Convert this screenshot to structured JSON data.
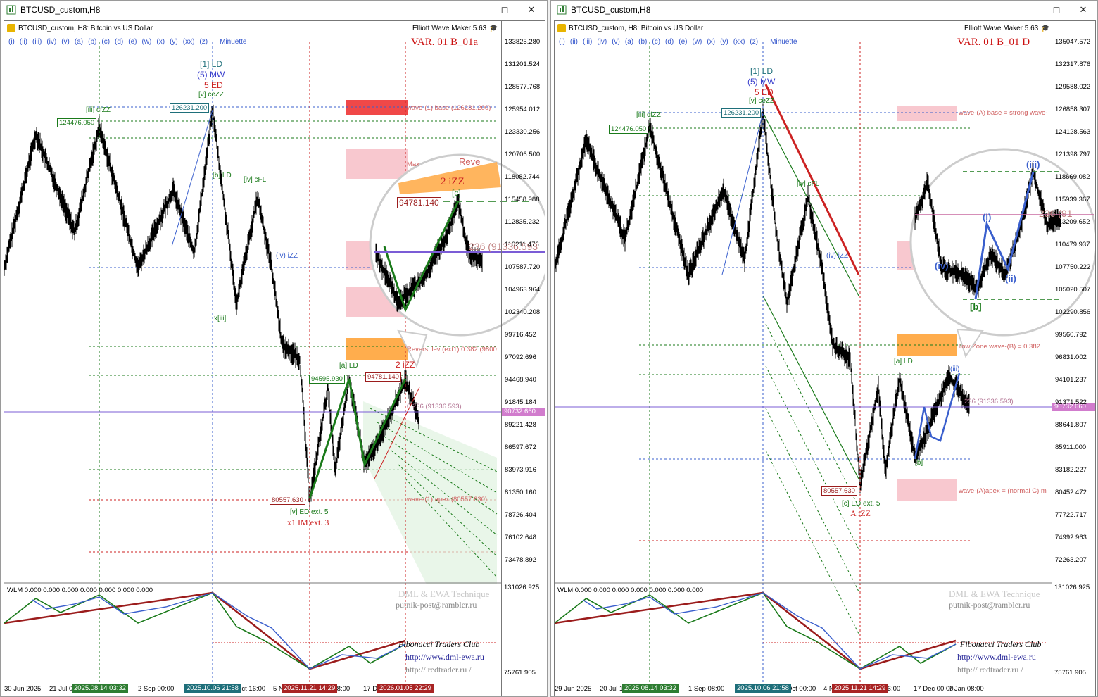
{
  "left": {
    "window_title": "BTCUSD_custom,H8",
    "symbol_line": "BTCUSD_custom, H8:  Bitcoin vs US Dollar",
    "wave_buttons": [
      "(i)",
      "(ii)",
      "(iii)",
      "(iv)",
      "(v)",
      "(a)",
      "(b)",
      "(c)",
      "(d)",
      "(e)",
      "(w)",
      "(x)",
      "(y)",
      "(xx)",
      "(z)",
      "Minuette"
    ],
    "indicator_name": "Elliott Wave Maker 5.63",
    "variant": "VAR. 01 B_01a",
    "y_ticks": [
      "133825.280",
      "131201.524",
      "128577.768",
      "125954.012",
      "123330.256",
      "120706.500",
      "118082.744",
      "115458.988",
      "112835.232",
      "110211.476",
      "107587.720",
      "104963.964",
      "102340.208",
      "99716.452",
      "97092.696",
      "94468.940",
      "91845.184",
      "89221.428",
      "86597.672",
      "83973.916",
      "81350.160",
      "78726.404",
      "76102.648",
      "73478.892"
    ],
    "current_price": "90732.660",
    "ind_ticks": [
      "131026.925",
      "75761.905"
    ],
    "x_labels": [
      "30 Jun 2025",
      "21 Jul 0",
      "2 Sep 00:00",
      "Oct 16:00",
      "5 N",
      "v 08:00",
      "17 D",
      "8:00"
    ],
    "x_tags": [
      "2025.08.14 03:32",
      "2025.10.06 21:58",
      "2025.11.21 14:29",
      "2026.01.05 22:29"
    ],
    "ind_title": "WLM 0.000 0.000 0.000 0.000 0.000 0.000 0.000",
    "credits": [
      "DML & EWA Technique",
      "putnik-post@rambler.ru",
      "Fibonacci   Traders   Club",
      "http://www.dml-ewa.ru",
      "http:// redtrader.ru /"
    ],
    "labels": {
      "ld": "[1] LD",
      "mw": "(5) MW",
      "ed": "5 ED",
      "ceZZ": "[v] ceZZ",
      "cfZZ": "[iii] cfZZ",
      "cFL": "[iv] cFL",
      "izz": "(iv) iZZ",
      "aLD": "[a] LD",
      "izz2": "2 iZZ",
      "edext": "[v] ED ext. 5",
      "imext": "x1 IM ext. 3",
      "bld": "[b] LD",
      "xiii": "x[iii]",
      "ceZZ2": "ceZZ"
    },
    "price_boxes": [
      "126231.200",
      "124476.050",
      "94595.930",
      "94781.140",
      "80557.630"
    ],
    "zones": [
      "wave-(1) base (126231.200)",
      "Max",
      "Revers. lev (ext1) 0.382 (9800",
      "wave-(1) apex (80557.630)",
      "0.236 (91336.593)"
    ],
    "zoom": {
      "price_box": "94781.140",
      "label": "2 iZZ",
      "c": "[c]",
      "fib": "236 (91336.593",
      "rev": "Reve"
    }
  },
  "right": {
    "window_title": "BTCUSD_custom,H8",
    "symbol_line": "BTCUSD_custom, H8:  Bitcoin vs US Dollar",
    "wave_buttons": [
      "(i)",
      "(ii)",
      "(iii)",
      "(iv)",
      "(v)",
      "(a)",
      "(b)",
      "(c)",
      "(d)",
      "(e)",
      "(w)",
      "(x)",
      "(y)",
      "(xx)",
      "(z)",
      "Minuette"
    ],
    "indicator_name": "Elliott Wave Maker 5.63",
    "variant": "VAR. 01 B_01 D",
    "y_ticks": [
      "135047.572",
      "132317.876",
      "129588.022",
      "126858.307",
      "124128.563",
      "121398.797",
      "118669.082",
      "115939.367",
      "113209.652",
      "110479.937",
      "107750.222",
      "105020.507",
      "102290.856",
      "99560.792",
      "96831.002",
      "94101.237",
      "91371.522",
      "88641.807",
      "85911.000",
      "83182.227",
      "80452.472",
      "77722.717",
      "74992.963",
      "72263.207"
    ],
    "current_price": "90732.660",
    "ind_ticks": [
      "131026.925",
      "75761.905"
    ],
    "x_labels": [
      "29 Jun 2025",
      "20 Jul 1",
      "1 Sep 08:00",
      "Oct 00:00",
      "4 N",
      "v 16:00",
      "17 Dec 00:00",
      "7 Jan 08:00"
    ],
    "x_tags": [
      "2025.08.14 03:32",
      "2025.10.06 21:58",
      "2025.11.21 14:29"
    ],
    "ind_title": "WLM 0.000 0.000 0.000 0.000 0.000 0.000 0.000",
    "credits": [
      "DML & EWA Technique",
      "putnik-post@rambler.ru",
      "Fibonacci   Traders   Club",
      "http://www.dml-ewa.ru",
      "http:// redtrader.ru /"
    ],
    "labels": {
      "ld": "[1] LD",
      "mw": "(5) MW",
      "ed": "5 ED",
      "ceZZ": "[v] ceZZ",
      "cfZZ": "[iii] cfZZ",
      "cFL": "[iv] cFL",
      "izz": "(iv) iZZ",
      "aLD": "[a] LD",
      "edext": "[c] ED ext. 5",
      "azz": "A iZZ",
      "bld": "[b]",
      "ceZZ2": "ceZZ",
      "iii": "(iii)",
      "b": "[b]"
    },
    "price_boxes": [
      "126231.200",
      "124476.050",
      "80557.630"
    ],
    "zones": [
      "wave-(A) base = strong wave-",
      "llow Zone wave-(B) = 0.382",
      "wave-(A)apex = (normal C) m",
      "236 (91336.593)"
    ],
    "zoom": {
      "iii": "(iii)",
      "i": "(i)",
      "ii": "(ii)",
      "iv": "(iv)",
      "b": "[b]",
      "fib": "236 (91"
    }
  },
  "colors": {
    "candle": "#000000",
    "green": "#1a7a1a",
    "blue": "#3a5fcd",
    "red": "#cc2222",
    "darkred": "#9b1c1c",
    "pink_zone": "#f8c8cf",
    "red_zone": "#f04848",
    "orange_zone": "#ffad4d",
    "price_line": "#7b5cd6",
    "tag_green": "#2e7d32",
    "tag_teal": "#1e6f7a",
    "tag_red": "#a82323"
  }
}
